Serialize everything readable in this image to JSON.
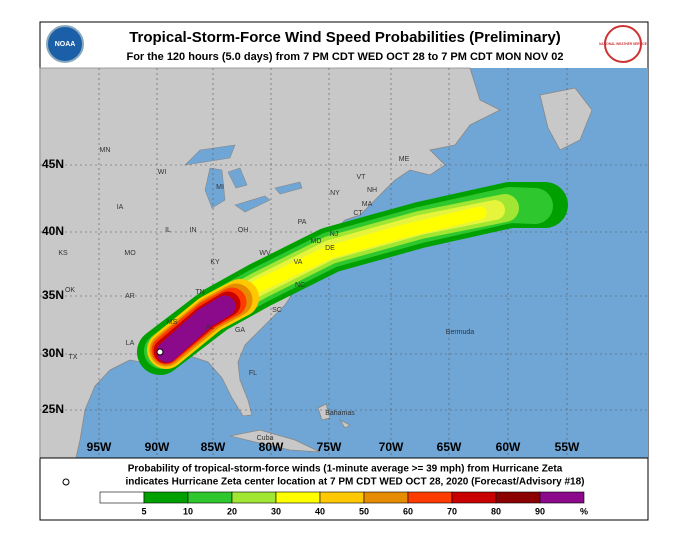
{
  "header": {
    "title": "Tropical-Storm-Force Wind Speed Probabilities (Preliminary)",
    "subtitle": "For the 120 hours (5.0 days) from 7 PM CDT WED OCT 28 to 7 PM CDT MON NOV 02",
    "logos": [
      "NOAA",
      "NATIONAL WEATHER SERVICE"
    ]
  },
  "map": {
    "lat_labels": [
      "45N",
      "40N",
      "35N",
      "30N",
      "25N"
    ],
    "lon_labels": [
      "95W",
      "90W",
      "85W",
      "80W",
      "75W",
      "70W",
      "65W",
      "60W",
      "55W"
    ],
    "state_labels": [
      "MN",
      "WI",
      "MI",
      "IA",
      "IL",
      "IN",
      "OH",
      "PA",
      "NY",
      "VT",
      "NH",
      "ME",
      "MA",
      "CT",
      "NJ",
      "DE",
      "MD",
      "WV",
      "VA",
      "KY",
      "MO",
      "KS",
      "OK",
      "AR",
      "TN",
      "NC",
      "SC",
      "GA",
      "AL",
      "MS",
      "LA",
      "TX",
      "FL"
    ],
    "place_labels": [
      "Bermuda",
      "Bahamas",
      "Cuba"
    ]
  },
  "footer": {
    "line1": "Probability of tropical-storm-force winds (1-minute average >= 39 mph) from Hurricane Zeta",
    "line2": "indicates Hurricane Zeta center location at 7 PM CDT WED OCT 28, 2020 (Forecast/Advisory #18)",
    "scale": [
      "5",
      "10",
      "20",
      "30",
      "40",
      "50",
      "60",
      "70",
      "80",
      "90",
      "%"
    ]
  }
}
